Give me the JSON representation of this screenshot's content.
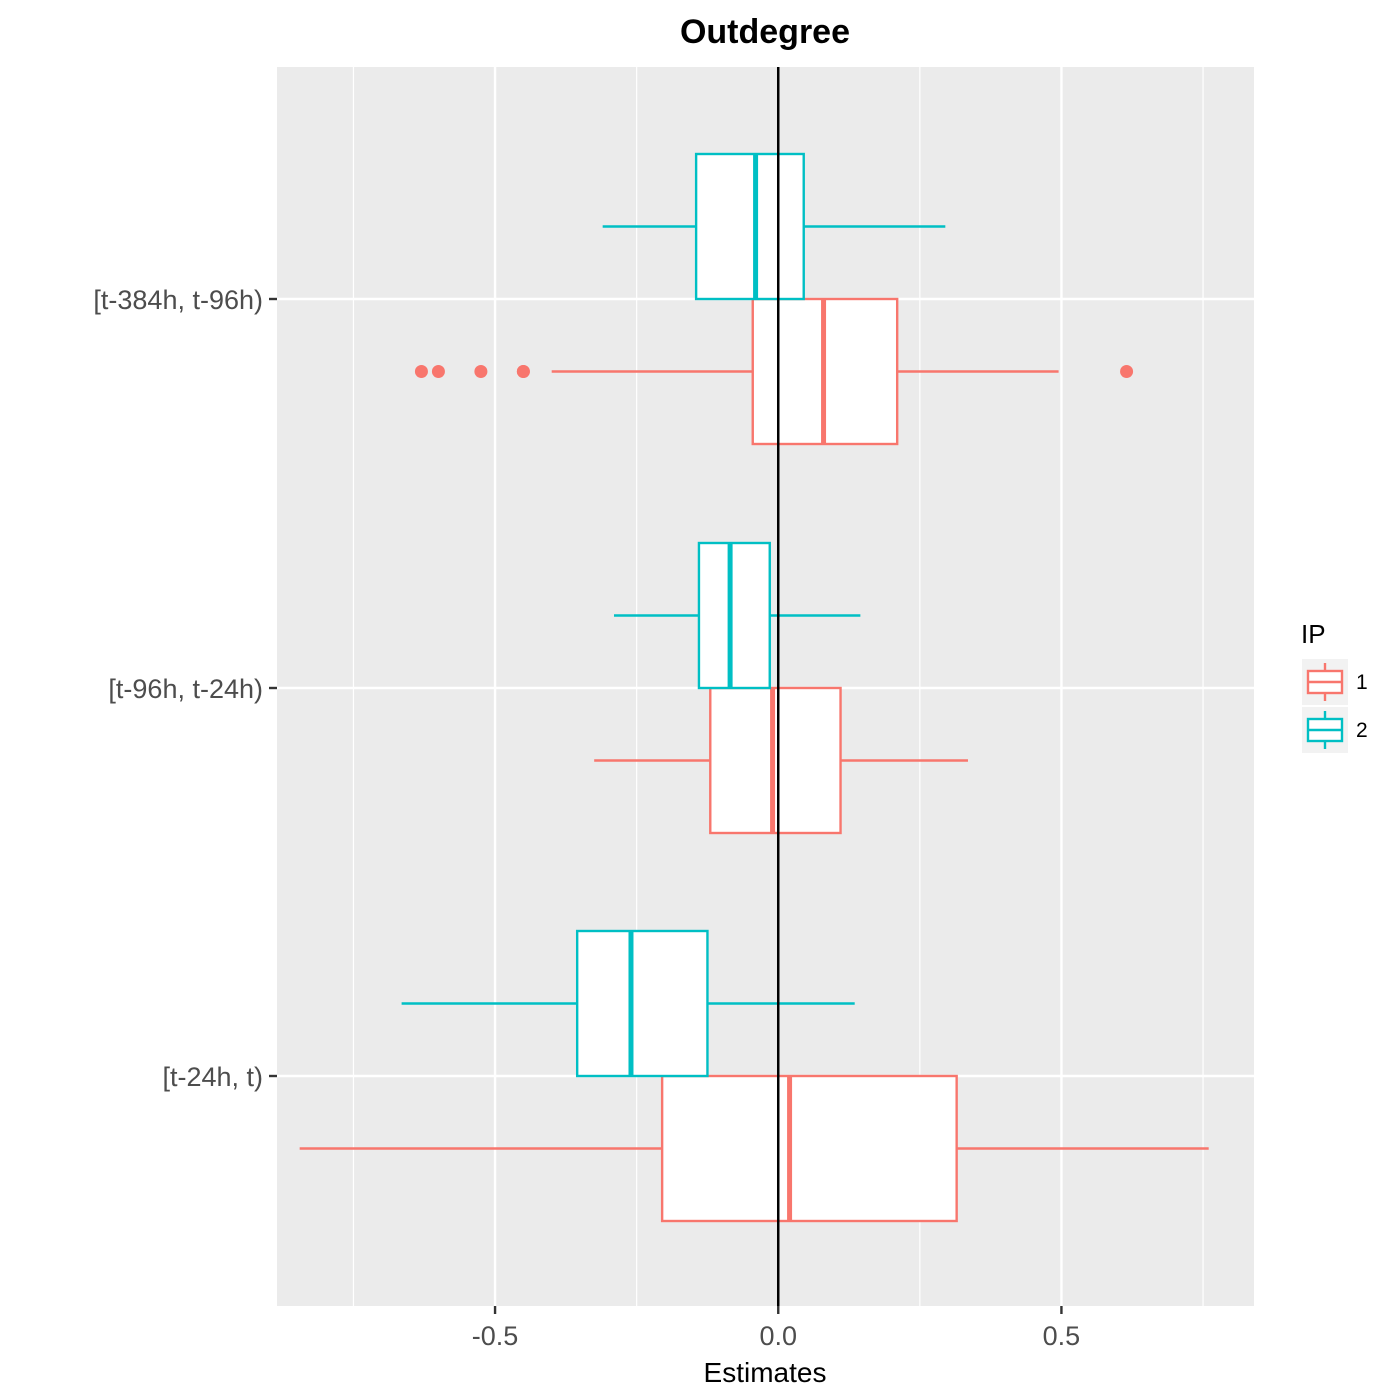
{
  "chart_data": {
    "type": "boxplot",
    "orientation": "horizontal",
    "title": "Outdegree",
    "xlabel": "Estimates",
    "ylabel": "",
    "xlim": [
      -0.885,
      0.84
    ],
    "x_ticks": [
      -0.5,
      0.0,
      0.5
    ],
    "x_tick_labels": [
      "-0.5",
      "0.0",
      "0.5"
    ],
    "categories": [
      "[t-384h, t-96h)",
      "[t-96h, t-24h)",
      "[t-24h, t)"
    ],
    "reference_line_x": 0,
    "grid": true,
    "legend": {
      "title": "IP",
      "position": "right",
      "entries": [
        {
          "label": "1",
          "color": "#F8766D"
        },
        {
          "label": "2",
          "color": "#00BFC4"
        }
      ]
    },
    "series": [
      {
        "name": "1",
        "color": "#F8766D",
        "boxes": [
          {
            "category": "[t-384h, t-96h)",
            "whisker_low": -0.4,
            "q1": -0.045,
            "median": 0.08,
            "q3": 0.21,
            "whisker_high": 0.495,
            "outliers": [
              -0.63,
              -0.6,
              -0.525,
              -0.45,
              -0.45,
              0.615
            ]
          },
          {
            "category": "[t-96h, t-24h)",
            "whisker_low": -0.325,
            "q1": -0.12,
            "median": -0.01,
            "q3": 0.11,
            "whisker_high": 0.335,
            "outliers": []
          },
          {
            "category": "[t-24h, t)",
            "whisker_low": -0.845,
            "q1": -0.205,
            "median": 0.02,
            "q3": 0.315,
            "whisker_high": 0.76,
            "outliers": []
          }
        ]
      },
      {
        "name": "2",
        "color": "#00BFC4",
        "boxes": [
          {
            "category": "[t-384h, t-96h)",
            "whisker_low": -0.31,
            "q1": -0.145,
            "median": -0.04,
            "q3": 0.045,
            "whisker_high": 0.295,
            "outliers": []
          },
          {
            "category": "[t-96h, t-24h)",
            "whisker_low": -0.29,
            "q1": -0.14,
            "median": -0.085,
            "q3": -0.015,
            "whisker_high": 0.145,
            "outliers": []
          },
          {
            "category": "[t-24h, t)",
            "whisker_low": -0.665,
            "q1": -0.355,
            "median": -0.26,
            "q3": -0.125,
            "whisker_high": 0.135,
            "outliers": []
          }
        ]
      }
    ]
  }
}
